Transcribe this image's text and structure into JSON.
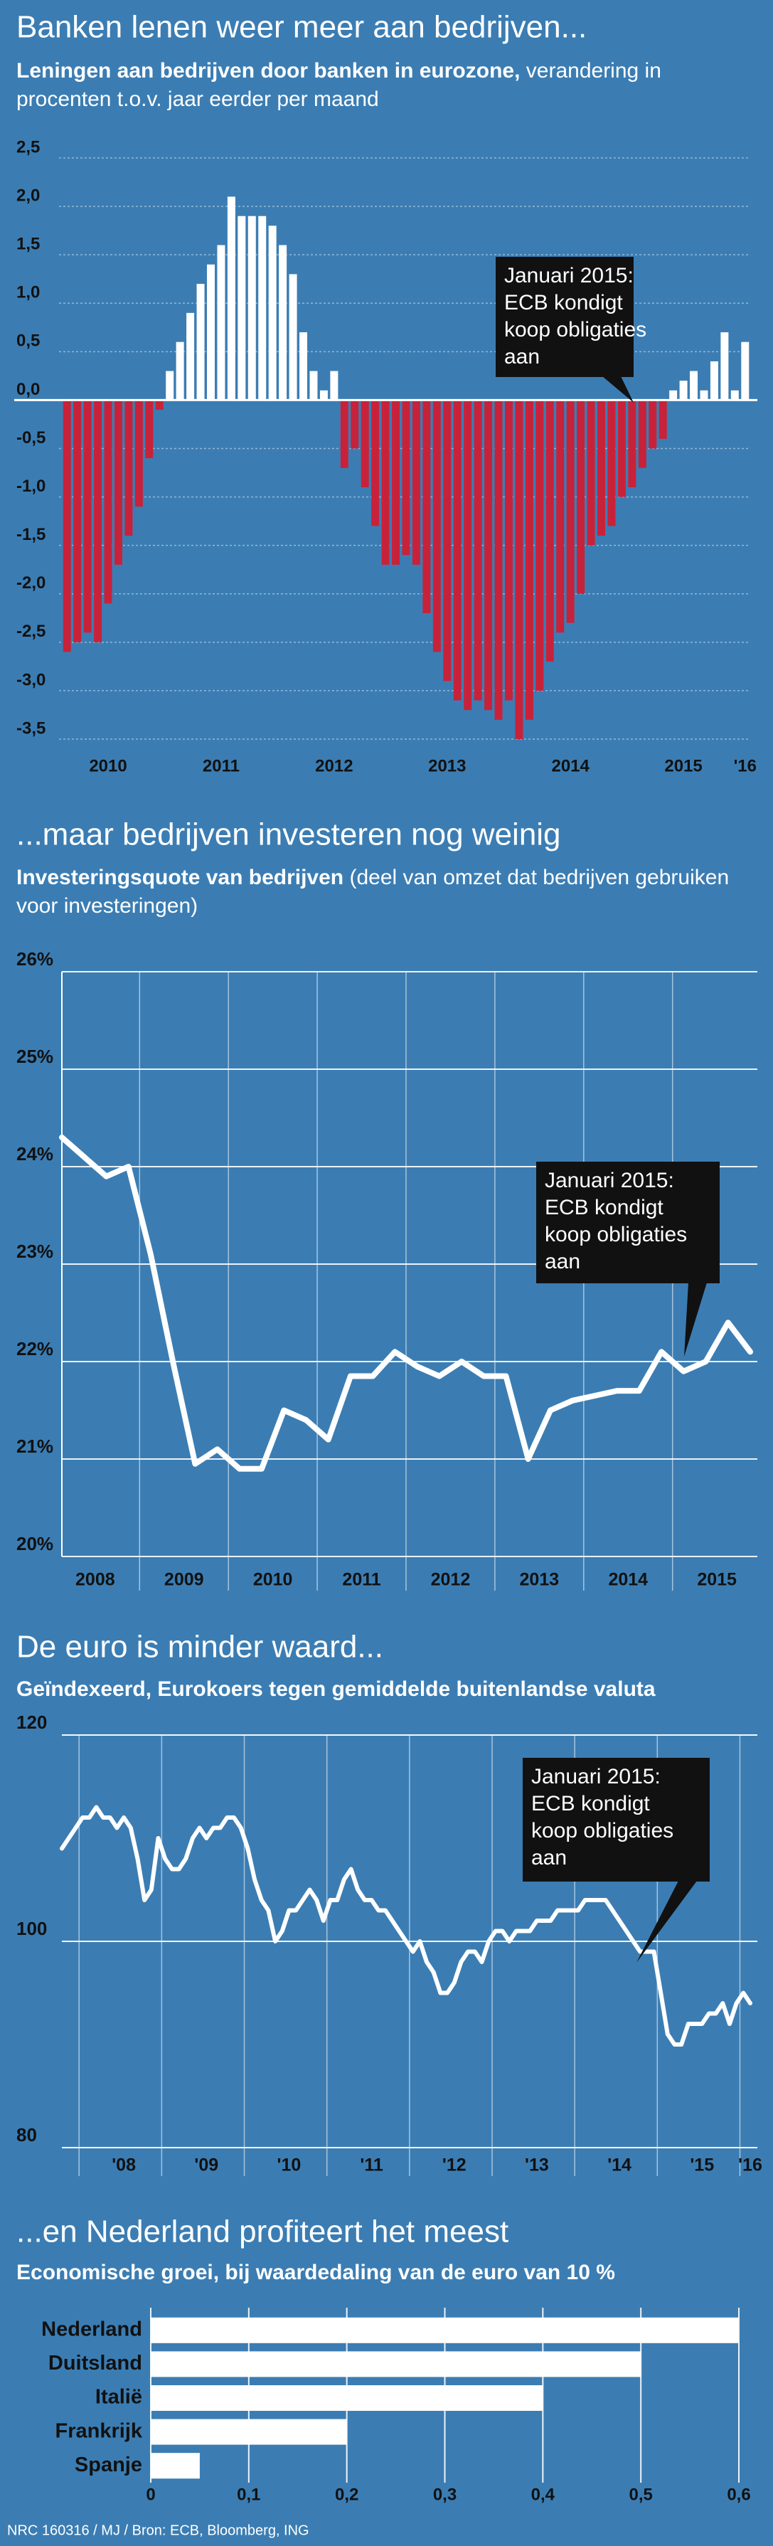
{
  "chart_data": [
    {
      "type": "bar",
      "title": "Banken lenen weer meer aan bedrijven...",
      "subtitle": "Leningen aan bedrijven door banken in eurozone,",
      "subtitle_note": "verandering in procenten t.o.v. jaar eerder per maand",
      "categories": [
        null,
        null,
        null,
        null,
        "2010",
        null,
        null,
        null,
        null,
        null,
        null,
        null,
        null,
        null,
        null,
        "2011",
        null,
        null,
        null,
        null,
        null,
        null,
        null,
        null,
        null,
        null,
        "2012",
        null,
        null,
        null,
        null,
        null,
        null,
        null,
        null,
        null,
        null,
        "2013",
        null,
        null,
        null,
        null,
        null,
        null,
        null,
        null,
        null,
        null,
        null,
        "2014",
        null,
        null,
        null,
        null,
        null,
        null,
        null,
        null,
        null,
        null,
        "2015",
        null,
        null,
        null,
        null,
        null,
        "'16"
      ],
      "values": [
        -2.6,
        -2.5,
        -2.4,
        -2.5,
        -2.1,
        -1.7,
        -1.4,
        -1.1,
        -0.6,
        -0.1,
        0.3,
        0.6,
        0.9,
        1.2,
        1.4,
        1.6,
        2.1,
        1.9,
        1.9,
        1.9,
        1.8,
        1.6,
        1.3,
        0.7,
        0.3,
        0.1,
        0.3,
        -0.7,
        -0.5,
        -0.9,
        -1.3,
        -1.7,
        -1.7,
        -1.6,
        -1.7,
        -2.2,
        -2.6,
        -2.9,
        -3.1,
        -3.2,
        -3.1,
        -3.2,
        -3.3,
        -3.1,
        -3.5,
        -3.3,
        -3.0,
        -2.7,
        -2.4,
        -2.3,
        -2.0,
        -1.5,
        -1.4,
        -1.3,
        -1.0,
        -0.9,
        -0.7,
        -0.5,
        -0.4,
        0.1,
        0.2,
        0.3,
        0.1,
        0.4,
        0.7,
        0.1,
        0.6
      ],
      "color": "#ffffff",
      "negative_color": "#c8223a",
      "ylim": [
        -3.5,
        2.5
      ],
      "yticks": [
        {
          "value": 2.5,
          "label": "2,5"
        },
        {
          "value": 2.0,
          "label": "2,0"
        },
        {
          "value": 1.5,
          "label": "1,5"
        },
        {
          "value": 1.0,
          "label": "1,0"
        },
        {
          "value": 0.5,
          "label": "0,5"
        },
        {
          "value": 0,
          "label": "0,0"
        },
        {
          "value": -0.5,
          "label": "-0,5"
        },
        {
          "value": -1.0,
          "label": "-1,0"
        },
        {
          "value": -1.5,
          "label": "-1,5"
        },
        {
          "value": -2.0,
          "label": "-2,0"
        },
        {
          "value": -2.5,
          "label": "-2,5"
        },
        {
          "value": -3.0,
          "label": "-3,0"
        },
        {
          "value": -3.5,
          "label": "-3,5"
        }
      ],
      "annotation": [
        "Januari 2015:",
        "ECB kondigt",
        "koop obligaties",
        "aan"
      ]
    },
    {
      "type": "line",
      "title": "...maar bedrijven investeren nog weinig",
      "subtitle": "Investeringsquote van bedrijven",
      "subtitle_note": "(deel van omzet dat bedrijven gebruiken voor investeringen)",
      "categories": [
        null,
        null,
        "2008",
        null,
        null,
        null,
        "2009",
        null,
        null,
        null,
        "2010",
        null,
        null,
        null,
        "2011",
        null,
        null,
        null,
        "2012",
        null,
        null,
        null,
        "2013",
        null,
        null,
        null,
        "2014",
        null,
        null,
        null,
        "2015",
        null
      ],
      "values": [
        24.3,
        24.1,
        23.9,
        24.0,
        23.1,
        22.0,
        20.95,
        21.1,
        20.9,
        20.9,
        21.5,
        21.4,
        21.2,
        21.85,
        21.85,
        22.1,
        21.95,
        21.85,
        22.0,
        21.85,
        21.85,
        21.0,
        21.5,
        21.6,
        21.65,
        21.7,
        21.7,
        22.1,
        21.9,
        22.0,
        22.4,
        22.1
      ],
      "color": "#ffffff",
      "ylim": [
        20,
        26
      ],
      "yticks": [
        {
          "value": 20,
          "label": "20%"
        },
        {
          "value": 21,
          "label": "21%"
        },
        {
          "value": 22,
          "label": "22%"
        },
        {
          "value": 23,
          "label": "23%"
        },
        {
          "value": 24,
          "label": "24%"
        },
        {
          "value": 25,
          "label": "25%"
        },
        {
          "value": 26,
          "label": "26%"
        }
      ],
      "annotation": [
        "Januari 2015:",
        "ECB kondigt",
        "koop obligaties",
        "aan"
      ]
    },
    {
      "type": "line",
      "title": "De euro is minder waard...",
      "subtitle": "Geïndexeerd, Eurokoers tegen gemiddelde buitenlandse valuta",
      "categories": [
        null,
        null,
        null,
        null,
        null,
        null,
        null,
        null,
        null,
        "'08",
        null,
        null,
        null,
        null,
        null,
        null,
        null,
        null,
        null,
        null,
        null,
        "'09",
        null,
        null,
        null,
        null,
        null,
        null,
        null,
        null,
        null,
        null,
        null,
        "'10",
        null,
        null,
        null,
        null,
        null,
        null,
        null,
        null,
        null,
        null,
        null,
        "'11",
        null,
        null,
        null,
        null,
        null,
        null,
        null,
        null,
        null,
        null,
        null,
        "'12",
        null,
        null,
        null,
        null,
        null,
        null,
        null,
        null,
        null,
        null,
        null,
        "'13",
        null,
        null,
        null,
        null,
        null,
        null,
        null,
        null,
        null,
        null,
        null,
        "'14",
        null,
        null,
        null,
        null,
        null,
        null,
        null,
        null,
        null,
        null,
        null,
        "'15",
        null,
        null,
        null,
        null,
        null,
        null,
        "'16"
      ],
      "values": [
        109,
        110,
        111,
        112,
        112,
        113,
        112,
        112,
        111,
        112,
        111,
        108,
        104,
        105,
        110,
        108,
        107,
        107,
        108,
        110,
        111,
        110,
        111,
        111,
        112,
        112,
        111,
        109,
        106,
        104,
        103,
        100,
        101,
        103,
        103,
        104,
        105,
        104,
        102,
        104,
        104,
        106,
        107,
        105,
        104,
        104,
        103,
        103,
        102,
        101,
        100,
        99,
        100,
        98,
        97,
        95,
        95,
        96,
        98,
        99,
        99,
        98,
        100,
        101,
        101,
        100,
        101,
        101,
        101,
        102,
        102,
        102,
        103,
        103,
        103,
        103,
        104,
        104,
        104,
        104,
        103,
        102,
        101,
        100,
        99,
        99,
        99,
        95,
        91,
        90,
        90,
        92,
        92,
        92,
        93,
        93,
        94,
        92,
        94,
        95,
        94
      ],
      "color": "#ffffff",
      "ylim": [
        80,
        120
      ],
      "yticks": [
        80,
        100,
        120
      ],
      "annotation": [
        "Januari 2015:",
        "ECB kondigt",
        "koop obligaties",
        "aan"
      ]
    },
    {
      "type": "hbar",
      "title": "...en Nederland profiteert het meest",
      "subtitle": "Economische groei, bij waardedaling van de euro van 10 %",
      "categories": [
        "Nederland",
        "Duitsland",
        "Italië",
        "Frankrijk",
        "Spanje"
      ],
      "values": [
        0.6,
        0.5,
        0.4,
        0.2,
        0.05
      ],
      "color": "#ffffff",
      "xlim": [
        0,
        0.6
      ],
      "xticks": [
        0,
        {
          "value": 0.1,
          "label": "0,1"
        },
        {
          "value": 0.2,
          "label": "0,2"
        },
        {
          "value": 0.3,
          "label": "0,3"
        },
        {
          "value": 0.4,
          "label": "0,4"
        },
        {
          "value": 0.5,
          "label": "0,5"
        },
        {
          "value": 0.6,
          "label": "0,6"
        }
      ]
    }
  ],
  "footer": "NRC 160316 / MJ / Bron: ECB, Bloomberg, ING"
}
